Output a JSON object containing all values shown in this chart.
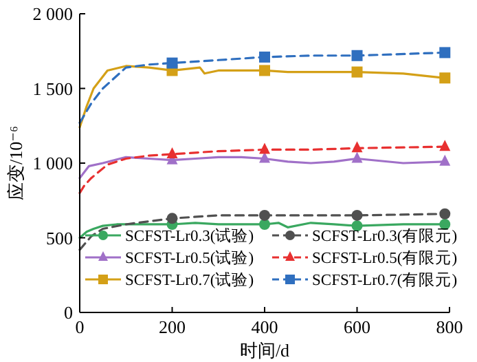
{
  "chart_data": {
    "type": "line",
    "xlabel": "时间/d",
    "ylabel": "应变/10⁻⁶",
    "xlim": [
      0,
      800
    ],
    "xticks": [
      0,
      200,
      400,
      600,
      800
    ],
    "ylim": [
      0,
      2000
    ],
    "yticks": [
      {
        "value": 0,
        "label": "0"
      },
      {
        "value": 500,
        "label": "500"
      },
      {
        "value": 1000,
        "label": "1 000"
      },
      {
        "value": 1500,
        "label": "1 500"
      },
      {
        "value": 2000,
        "label": "2 000"
      }
    ],
    "legend": "bottom",
    "series": [
      {
        "color": "#3aa860",
        "line_style": "solid",
        "x": [
          0,
          15,
          30,
          50,
          80,
          120,
          200,
          250,
          300,
          350,
          400,
          430,
          450,
          500,
          550,
          600,
          700,
          790
        ],
        "values": [
          500,
          540,
          560,
          580,
          590,
          590,
          590,
          600,
          590,
          590,
          590,
          600,
          570,
          600,
          590,
          580,
          590,
          590
        ]
      },
      {
        "color": "#a070c8",
        "line_style": "solid",
        "x": [
          0,
          20,
          50,
          100,
          150,
          200,
          250,
          300,
          350,
          400,
          450,
          500,
          550,
          600,
          700,
          790
        ],
        "values": [
          900,
          980,
          1000,
          1040,
          1030,
          1020,
          1030,
          1040,
          1040,
          1030,
          1010,
          1000,
          1010,
          1030,
          1000,
          1010
        ]
      },
      {
        "color": "#d4a017",
        "line_style": "solid",
        "x": [
          0,
          15,
          30,
          60,
          100,
          150,
          200,
          260,
          270,
          300,
          350,
          400,
          450,
          500,
          600,
          700,
          790
        ],
        "values": [
          1240,
          1380,
          1500,
          1620,
          1650,
          1640,
          1620,
          1640,
          1600,
          1620,
          1620,
          1620,
          1610,
          1610,
          1610,
          1600,
          1570
        ]
      },
      {
        "color": "#505050",
        "line_style": "dashed",
        "x": [
          0,
          25,
          50,
          100,
          150,
          200,
          300,
          400,
          500,
          600,
          790
        ],
        "values": [
          420,
          510,
          560,
          590,
          610,
          630,
          650,
          650,
          650,
          650,
          660
        ]
      },
      {
        "color": "#e83030",
        "line_style": "dashed",
        "x": [
          0,
          10,
          25,
          60,
          100,
          150,
          200,
          300,
          400,
          500,
          600,
          790
        ],
        "values": [
          800,
          850,
          900,
          990,
          1030,
          1050,
          1060,
          1080,
          1090,
          1090,
          1100,
          1110
        ]
      },
      {
        "color": "#2f6fbf",
        "line_style": "dashed",
        "x": [
          0,
          25,
          50,
          100,
          150,
          200,
          300,
          400,
          500,
          600,
          790
        ],
        "values": [
          1270,
          1400,
          1500,
          1640,
          1660,
          1670,
          1690,
          1710,
          1720,
          1720,
          1740
        ]
      },
      {
        "type": "scatter",
        "name": "SCFST-Lr0.3(试验)",
        "color": "#3aa860",
        "line_style": "solid",
        "marker": "circle",
        "x": [
          200,
          400,
          600,
          790
        ],
        "values": [
          590,
          590,
          580,
          590
        ]
      },
      {
        "type": "scatter",
        "name": "SCFST-Lr0.5(试验)",
        "color": "#a070c8",
        "line_style": "solid",
        "marker": "triangle",
        "x": [
          200,
          400,
          600,
          790
        ],
        "values": [
          1020,
          1030,
          1030,
          1010
        ]
      },
      {
        "type": "scatter",
        "name": "SCFST-Lr0.7(试验)",
        "color": "#d4a017",
        "line_style": "solid",
        "marker": "square",
        "x": [
          200,
          400,
          600,
          790
        ],
        "values": [
          1620,
          1620,
          1610,
          1570
        ]
      },
      {
        "type": "scatter",
        "name": "SCFST-Lr0.3(有限元)",
        "color": "#505050",
        "line_style": "dashed",
        "marker": "circle",
        "x": [
          200,
          400,
          600,
          790
        ],
        "values": [
          630,
          650,
          650,
          660
        ]
      },
      {
        "type": "scatter",
        "name": "SCFST-Lr0.5(有限元)",
        "color": "#e83030",
        "line_style": "dashed",
        "marker": "triangle",
        "x": [
          200,
          400,
          600,
          790
        ],
        "values": [
          1060,
          1090,
          1100,
          1110
        ]
      },
      {
        "type": "scatter",
        "name": "SCFST-Lr0.7(有限元)",
        "color": "#2f6fbf",
        "line_style": "dashed",
        "marker": "square",
        "x": [
          200,
          400,
          600,
          790
        ],
        "values": [
          1670,
          1710,
          1720,
          1740
        ]
      }
    ]
  }
}
